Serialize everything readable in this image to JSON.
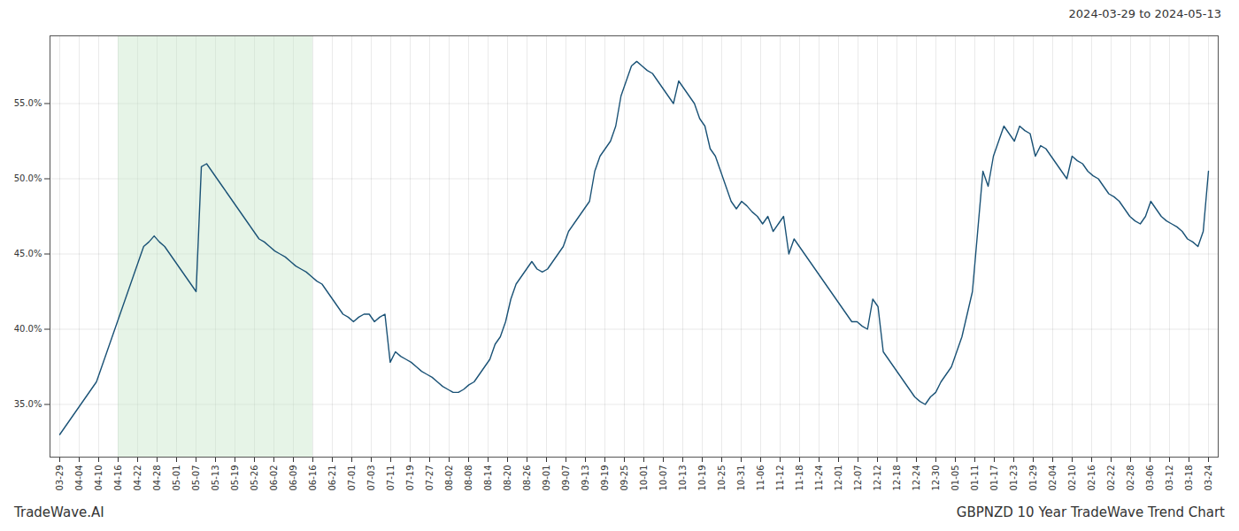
{
  "chart_data": {
    "type": "line",
    "title": "2024-03-29 to 2024-05-13",
    "annotations": [
      "TradeWave.AI",
      "GBPNZD 10 Year TradeWave Trend Chart"
    ],
    "color": "#1a5276",
    "grid": true,
    "shade": {
      "x": [
        3,
        13
      ],
      "color": "#c8e6c9"
    },
    "xlim": [
      -0.5,
      59.5
    ],
    "xticks": [
      {
        "value": 0,
        "label": "03-29"
      },
      {
        "value": 1,
        "label": "04-04"
      },
      {
        "value": 2,
        "label": "04-10"
      },
      {
        "value": 3,
        "label": "04-16"
      },
      {
        "value": 4,
        "label": "04-22"
      },
      {
        "value": 5,
        "label": "04-28"
      },
      {
        "value": 6,
        "label": "05-01"
      },
      {
        "value": 7,
        "label": "05-07"
      },
      {
        "value": 8,
        "label": "05-13"
      },
      {
        "value": 9,
        "label": "05-19"
      },
      {
        "value": 10,
        "label": "05-26"
      },
      {
        "value": 11,
        "label": "06-02"
      },
      {
        "value": 12,
        "label": "06-09"
      },
      {
        "value": 13,
        "label": "06-16"
      },
      {
        "value": 14,
        "label": "06-21"
      },
      {
        "value": 15,
        "label": "07-01"
      },
      {
        "value": 16,
        "label": "07-03"
      },
      {
        "value": 17,
        "label": "07-11"
      },
      {
        "value": 18,
        "label": "07-19"
      },
      {
        "value": 19,
        "label": "07-27"
      },
      {
        "value": 20,
        "label": "08-02"
      },
      {
        "value": 21,
        "label": "08-08"
      },
      {
        "value": 22,
        "label": "08-14"
      },
      {
        "value": 23,
        "label": "08-20"
      },
      {
        "value": 24,
        "label": "08-26"
      },
      {
        "value": 25,
        "label": "09-01"
      },
      {
        "value": 26,
        "label": "09-07"
      },
      {
        "value": 27,
        "label": "09-13"
      },
      {
        "value": 28,
        "label": "09-19"
      },
      {
        "value": 29,
        "label": "09-25"
      },
      {
        "value": 30,
        "label": "10-01"
      },
      {
        "value": 31,
        "label": "10-07"
      },
      {
        "value": 32,
        "label": "10-13"
      },
      {
        "value": 33,
        "label": "10-19"
      },
      {
        "value": 34,
        "label": "10-25"
      },
      {
        "value": 35,
        "label": "10-31"
      },
      {
        "value": 36,
        "label": "11-06"
      },
      {
        "value": 37,
        "label": "11-12"
      },
      {
        "value": 38,
        "label": "11-18"
      },
      {
        "value": 39,
        "label": "11-24"
      },
      {
        "value": 40,
        "label": "12-01"
      },
      {
        "value": 41,
        "label": "12-07"
      },
      {
        "value": 42,
        "label": "12-12"
      },
      {
        "value": 43,
        "label": "12-18"
      },
      {
        "value": 44,
        "label": "12-24"
      },
      {
        "value": 45,
        "label": "12-30"
      },
      {
        "value": 46,
        "label": "01-05"
      },
      {
        "value": 47,
        "label": "01-11"
      },
      {
        "value": 48,
        "label": "01-17"
      },
      {
        "value": 49,
        "label": "01-23"
      },
      {
        "value": 50,
        "label": "01-29"
      },
      {
        "value": 51,
        "label": "02-04"
      },
      {
        "value": 52,
        "label": "02-10"
      },
      {
        "value": 53,
        "label": "02-16"
      },
      {
        "value": 54,
        "label": "02-22"
      },
      {
        "value": 55,
        "label": "02-28"
      },
      {
        "value": 56,
        "label": "03-06"
      },
      {
        "value": 57,
        "label": "03-12"
      },
      {
        "value": 58,
        "label": "03-18"
      },
      {
        "value": 59,
        "label": "03-24"
      }
    ],
    "ylim": [
      31.5,
      59.5
    ],
    "yticks": [
      {
        "value": 35.0,
        "label": "35.0%"
      },
      {
        "value": 40.0,
        "label": "40.0%"
      },
      {
        "value": 45.0,
        "label": "45.0%"
      },
      {
        "value": 50.0,
        "label": "50.0%"
      },
      {
        "value": 55.0,
        "label": "55.0%"
      }
    ],
    "x": [
      0,
      0.2694,
      0.5388,
      0.8082,
      1.0776,
      1.347,
      1.6164,
      1.8858,
      2.1553,
      2.4247,
      2.6941,
      2.9635,
      3.2329,
      3.5023,
      3.7717,
      4.0411,
      4.3105,
      4.5799,
      4.8493,
      5.1187,
      5.3881,
      5.6575,
      5.9269,
      6.1963,
      6.4658,
      6.7352,
      7.0046,
      7.274,
      7.5434,
      7.8128,
      8.0822,
      8.3516,
      8.621,
      8.8904,
      9.1598,
      9.4292,
      9.6986,
      9.968,
      10.2374,
      10.5068,
      10.7763,
      11.0457,
      11.3151,
      11.5845,
      11.8539,
      12.1233,
      12.3927,
      12.6621,
      12.9315,
      13.2009,
      13.4703,
      13.7397,
      14.0091,
      14.2785,
      14.5479,
      14.8174,
      15.0868,
      15.3562,
      15.6256,
      15.895,
      16.1644,
      16.4338,
      16.7032,
      16.9726,
      17.242,
      17.5114,
      17.7808,
      18.0502,
      18.3196,
      18.589,
      18.8584,
      19.1279,
      19.3973,
      19.6667,
      19.9361,
      20.2055,
      20.4749,
      20.7443,
      21.0137,
      21.2831,
      21.5525,
      21.8219,
      22.0913,
      22.3607,
      22.6301,
      22.8995,
      23.1689,
      23.4384,
      23.7078,
      23.9772,
      24.2466,
      24.516,
      24.7854,
      25.0548,
      25.3242,
      25.5936,
      25.863,
      26.1324,
      26.4018,
      26.6712,
      26.9406,
      27.21,
      27.4795,
      27.7489,
      28.0183,
      28.2877,
      28.5571,
      28.8265,
      29.0959,
      29.3653,
      29.6347,
      29.9041,
      30.1735,
      30.4429,
      30.7123,
      30.9817,
      31.2511,
      31.5205,
      31.79,
      32.0594,
      32.3288,
      32.5982,
      32.8676,
      33.137,
      33.4064,
      33.6758,
      33.9452,
      34.2146,
      34.484,
      34.7534,
      35.0228,
      35.2922,
      35.5616,
      35.8311,
      36.1005,
      36.3699,
      36.6393,
      36.9087,
      37.1781,
      37.4475,
      37.7169,
      37.9863,
      38.2557,
      38.5251,
      38.7945,
      39.0639,
      39.3333,
      39.6027,
      39.8721,
      40.1416,
      40.411,
      40.6804,
      40.9498,
      41.2192,
      41.4886,
      41.758,
      42.0274,
      42.2968,
      42.5662,
      42.8356,
      43.105,
      43.3744,
      43.6438,
      43.9132,
      44.1826,
      44.4521,
      44.7215,
      44.9909,
      45.2603,
      45.5297,
      45.7991,
      46.0685,
      46.3379,
      46.6073,
      46.8767,
      47.1461,
      47.4155,
      47.6849,
      47.9543,
      48.2237,
      48.4932,
      48.7626,
      49.032,
      49.3014,
      49.5708,
      49.8402,
      50.1096,
      50.379,
      50.6484,
      50.9178,
      51.1872,
      51.4566,
      51.726,
      51.9954,
      52.2648,
      52.5342,
      52.8037,
      53.0731,
      53.3425,
      53.6119,
      53.8813,
      54.1507,
      54.4201,
      54.6895,
      54.9589,
      55.2283,
      55.4977,
      55.7671,
      56.0365,
      56.3059,
      56.5753,
      56.8447,
      57.1142,
      57.3836,
      57.653,
      57.9224,
      58.1918,
      58.4612,
      58.7306,
      59
    ],
    "values": [
      33.0,
      33.5,
      34.0,
      34.5,
      35.0,
      35.5,
      36.0,
      36.5,
      37.5,
      38.5,
      39.5,
      40.5,
      41.5,
      42.5,
      43.5,
      44.5,
      45.5,
      45.8,
      46.2,
      45.8,
      45.5,
      45.0,
      44.5,
      44.0,
      43.5,
      43.0,
      42.5,
      50.8,
      51.0,
      50.5,
      50.0,
      49.5,
      49.0,
      48.5,
      48.0,
      47.5,
      47.0,
      46.5,
      46.0,
      45.8,
      45.5,
      45.2,
      45.0,
      44.8,
      44.5,
      44.2,
      44.0,
      43.8,
      43.5,
      43.2,
      43.0,
      42.5,
      42.0,
      41.5,
      41.0,
      40.8,
      40.5,
      40.8,
      41.0,
      41.0,
      40.5,
      40.8,
      41.0,
      37.8,
      38.5,
      38.2,
      38.0,
      37.8,
      37.5,
      37.2,
      37.0,
      36.8,
      36.5,
      36.2,
      36.0,
      35.8,
      35.8,
      36.0,
      36.3,
      36.5,
      37.0,
      37.5,
      38.0,
      39.0,
      39.5,
      40.5,
      42.0,
      43.0,
      43.5,
      44.0,
      44.5,
      44.0,
      43.8,
      44.0,
      44.5,
      45.0,
      45.5,
      46.5,
      47.0,
      47.5,
      48.0,
      48.5,
      50.5,
      51.5,
      52.0,
      52.5,
      53.5,
      55.5,
      56.5,
      57.5,
      57.8,
      57.5,
      57.2,
      57.0,
      56.5,
      56.0,
      55.5,
      55.0,
      56.5,
      56.0,
      55.5,
      55.0,
      54.0,
      53.5,
      52.0,
      51.5,
      50.5,
      49.5,
      48.5,
      48.0,
      48.5,
      48.2,
      47.8,
      47.5,
      47.0,
      47.5,
      46.5,
      47.0,
      47.5,
      45.0,
      46.0,
      45.5,
      45.0,
      44.5,
      44.0,
      43.5,
      43.0,
      42.5,
      42.0,
      41.5,
      41.0,
      40.5,
      40.5,
      40.2,
      40.0,
      42.0,
      41.5,
      38.5,
      38.0,
      37.5,
      37.0,
      36.5,
      36.0,
      35.5,
      35.2,
      35.0,
      35.5,
      35.8,
      36.5,
      37.0,
      37.5,
      38.5,
      39.5,
      41.0,
      42.5,
      46.5,
      50.5,
      49.5,
      51.5,
      52.5,
      53.5,
      53.0,
      52.5,
      53.5,
      53.2,
      53.0,
      51.5,
      52.2,
      52.0,
      51.5,
      51.0,
      50.5,
      50.0,
      51.5,
      51.2,
      51.0,
      50.5,
      50.2,
      50.0,
      49.5,
      49.0,
      48.8,
      48.5,
      48.0,
      47.5,
      47.2,
      47.0,
      47.5,
      48.5,
      48.0,
      47.5,
      47.2,
      47.0,
      46.8,
      46.5,
      46.0,
      45.8,
      45.5,
      46.5,
      50.5
    ]
  }
}
